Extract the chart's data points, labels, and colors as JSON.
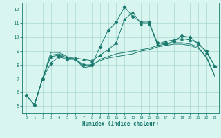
{
  "x": [
    0,
    1,
    2,
    3,
    4,
    5,
    6,
    7,
    8,
    9,
    10,
    11,
    12,
    13,
    14,
    15,
    16,
    17,
    18,
    19,
    20,
    21,
    22,
    23
  ],
  "line1": [
    5.8,
    5.1,
    7.0,
    8.1,
    8.6,
    8.4,
    8.4,
    8.0,
    8.0,
    9.3,
    10.5,
    11.1,
    12.2,
    11.5,
    11.1,
    11.1,
    9.6,
    9.5,
    9.7,
    10.1,
    10.0,
    9.5,
    9.0,
    7.9
  ],
  "line2": [
    5.8,
    5.1,
    7.0,
    8.6,
    8.7,
    8.5,
    8.5,
    8.4,
    8.3,
    8.7,
    9.1,
    9.6,
    11.3,
    11.8,
    11.0,
    11.0,
    9.5,
    9.7,
    9.8,
    9.9,
    9.8,
    9.6,
    8.9,
    7.9
  ],
  "line3": [
    5.8,
    5.1,
    7.0,
    8.7,
    8.8,
    8.5,
    8.4,
    7.9,
    8.0,
    8.3,
    8.5,
    8.6,
    8.7,
    8.8,
    9.0,
    9.1,
    9.3,
    9.4,
    9.5,
    9.5,
    9.4,
    9.2,
    8.6,
    7.2
  ],
  "line4": [
    5.8,
    5.1,
    7.0,
    8.9,
    8.9,
    8.6,
    8.4,
    7.8,
    7.9,
    8.4,
    8.6,
    8.8,
    8.9,
    9.0,
    9.1,
    9.2,
    9.4,
    9.5,
    9.6,
    9.6,
    9.5,
    9.3,
    8.5,
    7.2
  ],
  "color": "#1a7a6e",
  "bg_color": "#d8f5f0",
  "grid_color": "#a8d8d0",
  "xlabel": "Humidex (Indice chaleur)",
  "xlim": [
    -0.5,
    23.5
  ],
  "ylim": [
    4.5,
    12.5
  ],
  "yticks": [
    5,
    6,
    7,
    8,
    9,
    10,
    11,
    12
  ],
  "xticks": [
    0,
    1,
    2,
    3,
    4,
    5,
    6,
    7,
    8,
    9,
    10,
    11,
    12,
    13,
    14,
    15,
    16,
    17,
    18,
    19,
    20,
    21,
    22,
    23
  ]
}
